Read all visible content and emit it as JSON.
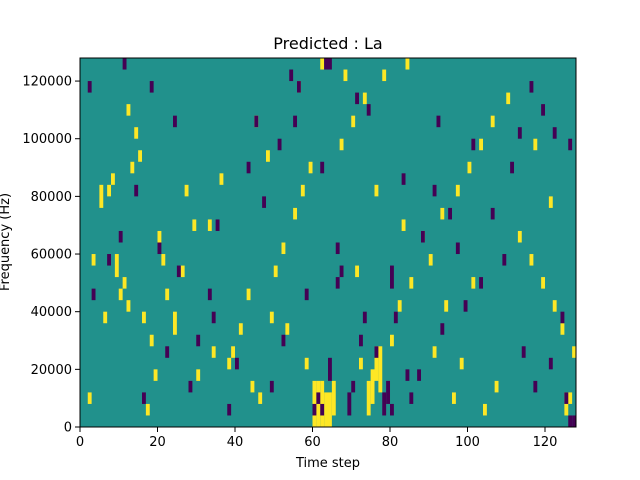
{
  "chart_data": {
    "type": "heatmap",
    "title": "Predicted : La",
    "xlabel": "Time step",
    "ylabel": "Frequency (Hz)",
    "xlim": [
      0,
      128
    ],
    "ylim": [
      0,
      128000
    ],
    "x_ticks": [
      0,
      20,
      40,
      60,
      80,
      100,
      120
    ],
    "y_ticks": [
      0,
      20000,
      40000,
      60000,
      80000,
      100000,
      120000
    ],
    "x_tick_labels": [
      "0",
      "20",
      "40",
      "60",
      "80",
      "100",
      "120"
    ],
    "y_tick_labels": [
      "0",
      "20000",
      "40000",
      "60000",
      "80000",
      "100000",
      "120000"
    ],
    "colormap": "viridis",
    "colors": {
      "background": "#21918c",
      "high": "#fde725",
      "low": "#440154"
    },
    "grid": false,
    "cells": {
      "columns": 128,
      "rows": 32,
      "row_height_hz": 4000,
      "high": [
        [
          60,
          0,
          4
        ],
        [
          61,
          0,
          4
        ],
        [
          62,
          0,
          4
        ],
        [
          63,
          0,
          3
        ],
        [
          64,
          0,
          3
        ],
        [
          65,
          1,
          3
        ],
        [
          74,
          1,
          3
        ],
        [
          75,
          2,
          3
        ],
        [
          77,
          3,
          4
        ],
        [
          76,
          4,
          3
        ],
        [
          72,
          5,
          1
        ],
        [
          125,
          1,
          2
        ],
        [
          126,
          2,
          1
        ],
        [
          38,
          5,
          1
        ],
        [
          39,
          6,
          1
        ],
        [
          24,
          8,
          2
        ],
        [
          12,
          10,
          1
        ],
        [
          10,
          11,
          1
        ],
        [
          11,
          12,
          1
        ],
        [
          9,
          13,
          2
        ],
        [
          3,
          14,
          1
        ],
        [
          5,
          19,
          2
        ],
        [
          7,
          20,
          1
        ],
        [
          8,
          21,
          1
        ],
        [
          13,
          22,
          1
        ],
        [
          15,
          23,
          1
        ],
        [
          14,
          25,
          1
        ],
        [
          12,
          27,
          1
        ],
        [
          21,
          14,
          1
        ],
        [
          20,
          16,
          1
        ],
        [
          22,
          11,
          1
        ],
        [
          18,
          7,
          1
        ],
        [
          16,
          9,
          1
        ],
        [
          44,
          3,
          1
        ],
        [
          46,
          2,
          1
        ],
        [
          49,
          9,
          1
        ],
        [
          50,
          13,
          1
        ],
        [
          52,
          15,
          1
        ],
        [
          55,
          18,
          1
        ],
        [
          57,
          20,
          1
        ],
        [
          59,
          22,
          1
        ],
        [
          67,
          24,
          1
        ],
        [
          70,
          26,
          1
        ],
        [
          73,
          28,
          1
        ],
        [
          78,
          30,
          1
        ],
        [
          80,
          7,
          1
        ],
        [
          82,
          10,
          1
        ],
        [
          85,
          12,
          1
        ],
        [
          88,
          16,
          1
        ],
        [
          90,
          14,
          1
        ],
        [
          93,
          18,
          1
        ],
        [
          97,
          20,
          1
        ],
        [
          100,
          22,
          1
        ],
        [
          103,
          24,
          1
        ],
        [
          106,
          26,
          1
        ],
        [
          110,
          28,
          1
        ],
        [
          113,
          16,
          1
        ],
        [
          116,
          14,
          1
        ],
        [
          119,
          12,
          1
        ],
        [
          122,
          10,
          1
        ],
        [
          124,
          8,
          1
        ],
        [
          104,
          1,
          1
        ],
        [
          107,
          3,
          1
        ],
        [
          98,
          5,
          1
        ],
        [
          96,
          2,
          1
        ],
        [
          30,
          4,
          1
        ],
        [
          34,
          6,
          1
        ],
        [
          41,
          8,
          1
        ],
        [
          27,
          20,
          1
        ],
        [
          33,
          17,
          1
        ],
        [
          36,
          21,
          1
        ],
        [
          45,
          26,
          1
        ],
        [
          48,
          23,
          1
        ],
        [
          56,
          29,
          1
        ],
        [
          62,
          31,
          1
        ],
        [
          68,
          30,
          1
        ],
        [
          84,
          31,
          1
        ],
        [
          117,
          24,
          1
        ],
        [
          121,
          19,
          1
        ],
        [
          127,
          6,
          1
        ],
        [
          2,
          2,
          1
        ],
        [
          6,
          9,
          1
        ],
        [
          17,
          1,
          1
        ],
        [
          19,
          4,
          1
        ],
        [
          26,
          13,
          1
        ],
        [
          29,
          17,
          1
        ],
        [
          43,
          11,
          1
        ],
        [
          53,
          8,
          1
        ],
        [
          58,
          5,
          1
        ],
        [
          71,
          13,
          1
        ],
        [
          76,
          20,
          1
        ],
        [
          83,
          17,
          1
        ],
        [
          91,
          6,
          1
        ],
        [
          94,
          10,
          1
        ],
        [
          101,
          12,
          1
        ]
      ],
      "low": [
        [
          60,
          1,
          1
        ],
        [
          61,
          2,
          1
        ],
        [
          62,
          1,
          1
        ],
        [
          64,
          4,
          2
        ],
        [
          69,
          1,
          2
        ],
        [
          70,
          3,
          1
        ],
        [
          78,
          1,
          2
        ],
        [
          79,
          2,
          2
        ],
        [
          80,
          1,
          1
        ],
        [
          84,
          4,
          1
        ],
        [
          85,
          2,
          1
        ],
        [
          126,
          0,
          1
        ],
        [
          127,
          0,
          1
        ],
        [
          125,
          2,
          1
        ],
        [
          72,
          7,
          1
        ],
        [
          73,
          9,
          1
        ],
        [
          66,
          12,
          1
        ],
        [
          66,
          15,
          1
        ],
        [
          62,
          22,
          1
        ],
        [
          63,
          31,
          1
        ],
        [
          64,
          31,
          1
        ],
        [
          80,
          12,
          2
        ],
        [
          81,
          9,
          1
        ],
        [
          88,
          16,
          1
        ],
        [
          95,
          18,
          1
        ],
        [
          97,
          15,
          1
        ],
        [
          2,
          29,
          1
        ],
        [
          11,
          31,
          1
        ],
        [
          18,
          29,
          1
        ],
        [
          24,
          26,
          1
        ],
        [
          45,
          26,
          1
        ],
        [
          54,
          30,
          1
        ],
        [
          56,
          29,
          1
        ],
        [
          71,
          28,
          1
        ],
        [
          74,
          27,
          1
        ],
        [
          92,
          26,
          1
        ],
        [
          101,
          24,
          1
        ],
        [
          113,
          25,
          1
        ],
        [
          119,
          27,
          1
        ],
        [
          122,
          25,
          1
        ],
        [
          126,
          24,
          1
        ],
        [
          14,
          20,
          1
        ],
        [
          10,
          16,
          1
        ],
        [
          20,
          15,
          1
        ],
        [
          25,
          13,
          1
        ],
        [
          33,
          11,
          1
        ],
        [
          34,
          9,
          1
        ],
        [
          40,
          5,
          1
        ],
        [
          49,
          3,
          1
        ],
        [
          52,
          7,
          1
        ],
        [
          58,
          11,
          1
        ],
        [
          67,
          13,
          1
        ],
        [
          76,
          6,
          1
        ],
        [
          87,
          4,
          1
        ],
        [
          93,
          8,
          1
        ],
        [
          99,
          10,
          1
        ],
        [
          103,
          12,
          1
        ],
        [
          109,
          14,
          1
        ],
        [
          114,
          6,
          1
        ],
        [
          117,
          3,
          1
        ],
        [
          121,
          5,
          1
        ],
        [
          124,
          9,
          1
        ],
        [
          28,
          3,
          1
        ],
        [
          30,
          7,
          1
        ],
        [
          35,
          17,
          1
        ],
        [
          43,
          22,
          1
        ],
        [
          47,
          19,
          1
        ],
        [
          51,
          24,
          1
        ],
        [
          55,
          26,
          1
        ],
        [
          83,
          21,
          1
        ],
        [
          91,
          20,
          1
        ],
        [
          106,
          18,
          1
        ],
        [
          111,
          22,
          1
        ],
        [
          116,
          29,
          1
        ],
        [
          3,
          11,
          1
        ],
        [
          7,
          14,
          1
        ],
        [
          16,
          2,
          1
        ],
        [
          22,
          6,
          1
        ],
        [
          38,
          1,
          1
        ]
      ]
    }
  }
}
